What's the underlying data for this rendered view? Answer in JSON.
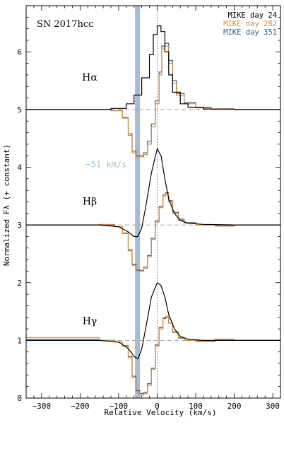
{
  "chart_data": {
    "type": "line",
    "title": "SN 2017hcc",
    "xlabel": "Relative Velocity (km/s)",
    "ylabel": "Normalized Fλ (+ constant)",
    "xlim": [
      -340,
      320
    ],
    "ylim": [
      0,
      6.8
    ],
    "x_ticks": [
      -300,
      -200,
      -100,
      0,
      100,
      200,
      300
    ],
    "y_ticks": [
      0,
      1,
      2,
      3,
      4,
      5,
      6
    ],
    "x_ticks_labels": [
      "−300",
      "−200",
      "−100",
      "0",
      "100",
      "200",
      "300"
    ],
    "y_ticks_labels": [
      "0",
      "1",
      "2",
      "3",
      "4",
      "5",
      "6"
    ],
    "grid": false,
    "legend_position": "top-right",
    "legend": [
      {
        "name": "MIKE day  24",
        "color": "#000000"
      },
      {
        "name": "MIKE day 282",
        "color": "#d98a3e"
      },
      {
        "name": "MIKE day 351",
        "color": "#2f5f8a"
      }
    ],
    "line_labels": [
      {
        "text": "Hα",
        "x": -175,
        "y": 5.5
      },
      {
        "text": "Hβ",
        "x": -175,
        "y": 3.35
      },
      {
        "text": "Hγ",
        "x": -175,
        "y": 1.28
      }
    ],
    "absorption_band": {
      "x": -51,
      "color": "#a7bcd3",
      "label": "−51 km/s"
    },
    "velocity_annotation": {
      "text": "−51 km/s",
      "x": -185,
      "y": 4.0
    },
    "zero_line": {
      "x": 0
    },
    "continuum_levels": [
      5,
      3,
      1
    ],
    "profiles": [
      {
        "line": "Hα",
        "offset": 5,
        "series": [
          {
            "name": "MIKE day  24",
            "color": "#000000",
            "style": "step",
            "x": [
              -340,
              -200,
              -120,
              -80,
              -60,
              -40,
              -20,
              -10,
              0,
              10,
              20,
              30,
              40,
              60,
              80,
              120,
              200,
              320
            ],
            "y": [
              5.0,
              5.0,
              5.02,
              5.1,
              5.25,
              5.55,
              5.95,
              6.3,
              6.45,
              6.35,
              6.0,
              5.6,
              5.3,
              5.1,
              5.04,
              5.01,
              5.0,
              5.0
            ]
          },
          {
            "name": "MIKE day 282",
            "color": "#d98a3e",
            "style": "step",
            "x": [
              -340,
              -200,
              -120,
              -90,
              -75,
              -65,
              -55,
              -45,
              -35,
              -25,
              -15,
              -5,
              5,
              12,
              20,
              30,
              40,
              50,
              70,
              100,
              140,
              200,
              320
            ],
            "y": [
              5.0,
              5.0,
              4.98,
              4.85,
              4.55,
              4.25,
              4.18,
              4.18,
              4.22,
              4.4,
              4.7,
              5.1,
              5.6,
              6.05,
              6.1,
              5.8,
              5.45,
              5.25,
              5.1,
              5.03,
              5.0,
              5.0,
              5.0
            ]
          },
          {
            "name": "MIKE day 351",
            "color": "#2f5f8a",
            "style": "step",
            "x": [
              -340,
              -200,
              -120,
              -90,
              -75,
              -65,
              -55,
              -45,
              -35,
              -25,
              -15,
              -5,
              5,
              12,
              20,
              30,
              40,
              50,
              70,
              100,
              140,
              200,
              320
            ],
            "y": [
              5.0,
              5.0,
              4.98,
              4.86,
              4.58,
              4.28,
              4.2,
              4.2,
              4.25,
              4.45,
              4.75,
              5.15,
              5.65,
              6.1,
              6.15,
              5.85,
              5.5,
              5.28,
              5.12,
              5.04,
              5.0,
              5.0,
              5.0
            ]
          }
        ]
      },
      {
        "line": "Hβ",
        "offset": 3,
        "series": [
          {
            "name": "MIKE day  24",
            "color": "#000000",
            "style": "line",
            "x": [
              -340,
              -150,
              -100,
              -75,
              -60,
              -50,
              -40,
              -30,
              -15,
              0,
              10,
              20,
              30,
              45,
              60,
              80,
              120,
              200,
              320
            ],
            "y": [
              3.0,
              3.0,
              2.97,
              2.88,
              2.8,
              2.8,
              2.95,
              3.3,
              3.9,
              4.32,
              4.2,
              3.8,
              3.45,
              3.2,
              3.08,
              3.03,
              3.01,
              3.0,
              3.0
            ]
          },
          {
            "name": "MIKE day 282",
            "color": "#d98a3e",
            "style": "step",
            "x": [
              -340,
              -150,
              -110,
              -90,
              -75,
              -65,
              -55,
              -45,
              -35,
              -25,
              -15,
              -5,
              5,
              15,
              22,
              30,
              40,
              55,
              70,
              100,
              150,
              200,
              320
            ],
            "y": [
              3.0,
              3.01,
              2.97,
              2.85,
              2.55,
              2.3,
              2.2,
              2.2,
              2.25,
              2.45,
              2.75,
              3.05,
              3.3,
              3.5,
              3.55,
              3.4,
              3.2,
              3.08,
              3.03,
              3.0,
              2.98,
              3.0,
              3.0
            ]
          },
          {
            "name": "MIKE day 351",
            "color": "#2f5f8a",
            "style": "step",
            "x": [
              -340,
              -150,
              -110,
              -90,
              -75,
              -65,
              -55,
              -45,
              -35,
              -25,
              -15,
              -5,
              5,
              15,
              22,
              30,
              40,
              55,
              70,
              100,
              150,
              200,
              320
            ],
            "y": [
              3.0,
              3.0,
              2.97,
              2.86,
              2.57,
              2.32,
              2.22,
              2.21,
              2.27,
              2.47,
              2.77,
              3.07,
              3.32,
              3.52,
              3.56,
              3.42,
              3.22,
              3.1,
              3.04,
              3.0,
              2.99,
              3.0,
              3.0
            ]
          }
        ]
      },
      {
        "line": "Hγ",
        "offset": 1,
        "series": [
          {
            "name": "MIKE day  24",
            "color": "#000000",
            "style": "line",
            "x": [
              -340,
              -150,
              -100,
              -75,
              -60,
              -50,
              -40,
              -30,
              -15,
              0,
              10,
              20,
              30,
              45,
              60,
              80,
              120,
              200,
              320
            ],
            "y": [
              1.0,
              1.0,
              0.97,
              0.86,
              0.72,
              0.68,
              0.85,
              1.2,
              1.75,
              2.0,
              1.95,
              1.75,
              1.45,
              1.2,
              1.07,
              1.02,
              1.0,
              1.0,
              1.0
            ]
          },
          {
            "name": "MIKE day 282",
            "color": "#d98a3e",
            "style": "step",
            "x": [
              -340,
              -150,
              -110,
              -90,
              -75,
              -65,
              -55,
              -45,
              -35,
              -25,
              -15,
              -5,
              5,
              15,
              22,
              30,
              40,
              55,
              70,
              100,
              150,
              200,
              320
            ],
            "y": [
              1.05,
              1.0,
              0.97,
              0.9,
              0.7,
              0.35,
              0.1,
              0.05,
              0.08,
              0.22,
              0.5,
              0.9,
              1.2,
              1.4,
              1.42,
              1.3,
              1.15,
              1.05,
              1.0,
              0.98,
              1.02,
              1.0,
              1.0
            ]
          },
          {
            "name": "MIKE day 351",
            "color": "#2f5f8a",
            "style": "step",
            "x": [
              -340,
              -150,
              -110,
              -90,
              -75,
              -65,
              -55,
              -45,
              -35,
              -25,
              -15,
              -5,
              5,
              15,
              22,
              30,
              40,
              55,
              70,
              100,
              150,
              200,
              320
            ],
            "y": [
              1.02,
              1.0,
              0.97,
              0.91,
              0.72,
              0.38,
              0.13,
              0.08,
              0.1,
              0.25,
              0.52,
              0.92,
              1.22,
              1.38,
              1.4,
              1.3,
              1.14,
              1.04,
              1.0,
              0.99,
              1.01,
              1.0,
              1.0
            ]
          }
        ]
      }
    ]
  }
}
